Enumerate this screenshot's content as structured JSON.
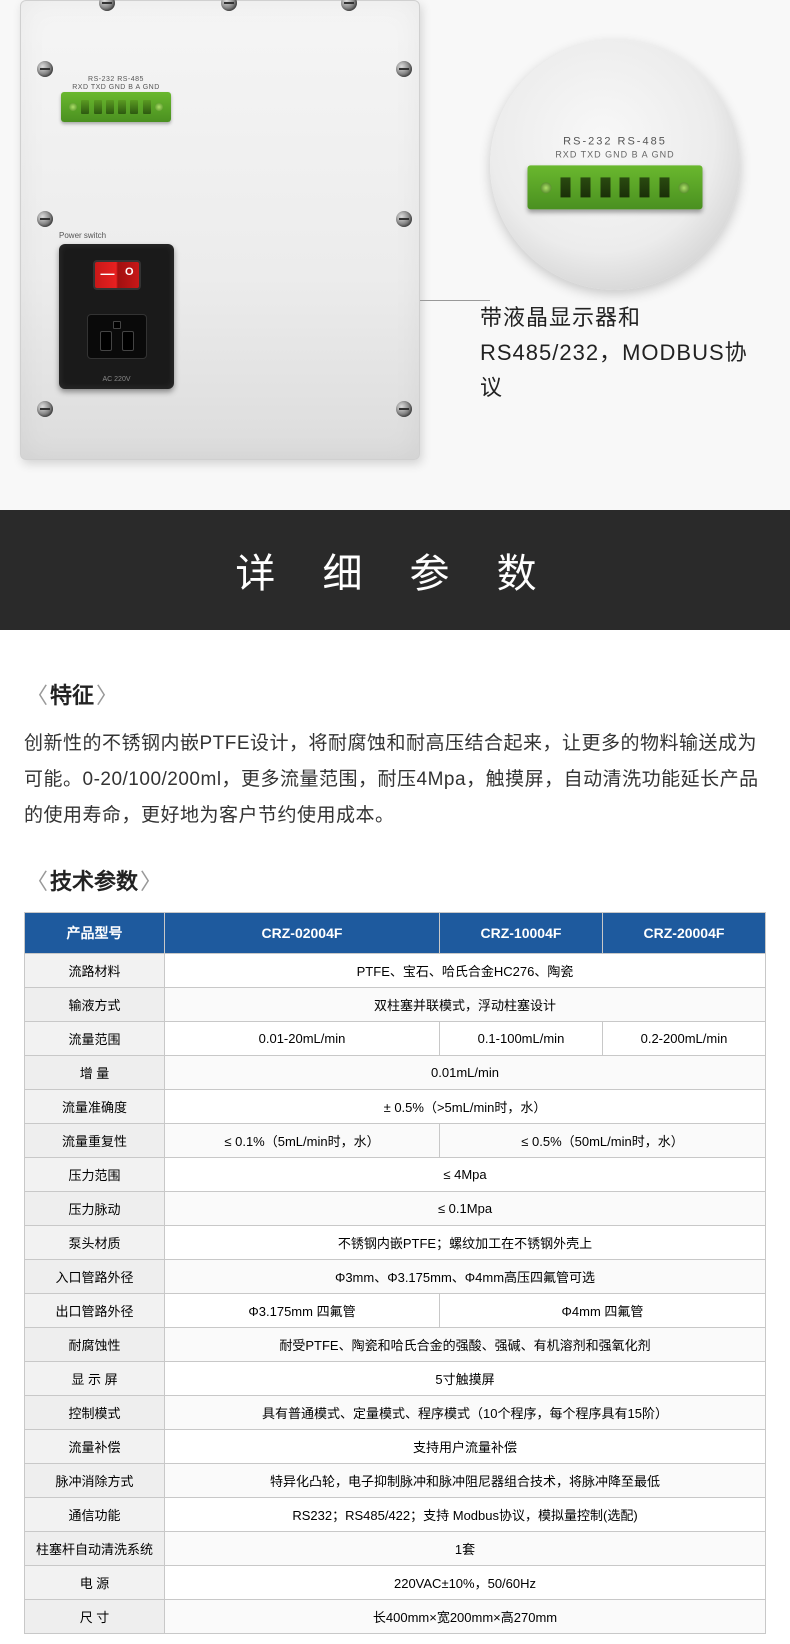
{
  "hero": {
    "term_top_labels": "RS-232    RS-485",
    "term_pin_labels": "RXD TXD GND   B  A  GND",
    "power_label": "Power switch",
    "ac_label": "AC 220V",
    "circle_line1": "RS-232        RS-485",
    "circle_line2": "RXD TXD GND    B   A  GND",
    "callout": "带液晶显示器和RS485/232，MODBUS协议"
  },
  "banner_title": "详 细 参 数",
  "features_title": "特征",
  "features_body": "创新性的不锈钢内嵌PTFE设计，将耐腐蚀和耐高压结合起来，让更多的物料输送成为可能。0-20/100/200ml，更多流量范围，耐压4Mpa，触摸屏，自动清洗功能延长产品的使用寿命，更好地为客户节约使用成本。",
  "specs_title": "技术参数",
  "table": {
    "header": [
      "产品型号",
      "CRZ-02004F",
      "CRZ-10004F",
      "CRZ-20004F"
    ],
    "rows": [
      {
        "label": "流路材料",
        "span": 3,
        "val": "PTFE、宝石、哈氏合金HC276、陶瓷"
      },
      {
        "label": "输液方式",
        "span": 3,
        "val": "双柱塞并联模式，浮动柱塞设计"
      },
      {
        "label": "流量范围",
        "vals": [
          "0.01-20mL/min",
          "0.1-100mL/min",
          "0.2-200mL/min"
        ]
      },
      {
        "label": "增 量",
        "span": 3,
        "val": "0.01mL/min"
      },
      {
        "label": "流量准确度",
        "span": 3,
        "val": "± 0.5%（>5mL/min时，水）"
      },
      {
        "label": "流量重复性",
        "spans": [
          1,
          2
        ],
        "vals2": [
          "≤ 0.1%（5mL/min时，水）",
          "≤ 0.5%（50mL/min时，水）"
        ]
      },
      {
        "label": "压力范围",
        "span": 3,
        "val": "≤ 4Mpa"
      },
      {
        "label": "压力脉动",
        "span": 3,
        "val": "≤ 0.1Mpa"
      },
      {
        "label": "泵头材质",
        "span": 3,
        "val": "不锈钢内嵌PTFE；螺纹加工在不锈钢外壳上"
      },
      {
        "label": "入口管路外径",
        "span": 3,
        "val": "Φ3mm、Φ3.175mm、Φ4mm高压四氟管可选"
      },
      {
        "label": "出口管路外径",
        "spans": [
          1,
          2
        ],
        "vals2": [
          "Φ3.175mm 四氟管",
          "Φ4mm 四氟管"
        ]
      },
      {
        "label": "耐腐蚀性",
        "span": 3,
        "val": "耐受PTFE、陶瓷和哈氏合金的强酸、强碱、有机溶剂和强氧化剂"
      },
      {
        "label": "显 示 屏",
        "span": 3,
        "val": "5寸触摸屏"
      },
      {
        "label": "控制模式",
        "span": 3,
        "val": "具有普通模式、定量模式、程序模式（10个程序，每个程序具有15阶）"
      },
      {
        "label": "流量补偿",
        "span": 3,
        "val": "支持用户流量补偿"
      },
      {
        "label": "脉冲消除方式",
        "span": 3,
        "val": "特异化凸轮，电子抑制脉冲和脉冲阻尼器组合技术，将脉冲降至最低"
      },
      {
        "label": "通信功能",
        "span": 3,
        "val": "RS232；RS485/422；支持 Modbus协议，模拟量控制(选配)"
      },
      {
        "label": "柱塞杆自动清洗系统",
        "span": 3,
        "val": "1套"
      },
      {
        "label": "电 源",
        "span": 3,
        "val": "220VAC±10%，50/60Hz"
      },
      {
        "label": "尺 寸",
        "span": 3,
        "val": "长400mm×宽200mm×高270mm"
      }
    ]
  },
  "colors": {
    "header_bg": "#1e5a9e",
    "banner_bg": "#2a2a2a",
    "terminal_green": "#6ab82e"
  }
}
